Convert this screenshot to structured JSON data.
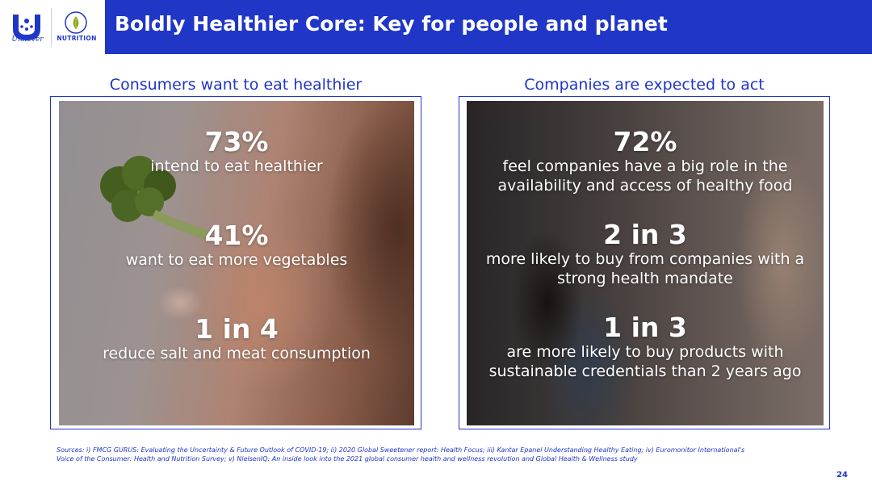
{
  "header": {
    "brand_name": "Unilever",
    "sub_brand": "NUTRITION",
    "title": "Boldly Healthier Core: Key for people and planet"
  },
  "left_panel": {
    "heading": "Consumers want to eat healthier",
    "stats": [
      {
        "value": "73%",
        "description": "intend to eat healthier"
      },
      {
        "value": "41%",
        "description": "want to eat more vegetables"
      },
      {
        "value": "1 in 4",
        "description": "reduce salt and meat consumption"
      }
    ]
  },
  "right_panel": {
    "heading": "Companies are expected to act",
    "stats": [
      {
        "value": "72%",
        "description_line1": "feel companies have a big role in the",
        "description_line2": "availability and access of healthy food"
      },
      {
        "value": "2 in 3",
        "description_line1": "more likely to buy from companies with a",
        "description_line2": "strong health mandate"
      },
      {
        "value": "1 in 3",
        "description_line1": "are more likely to buy products with",
        "description_line2": "sustainable credentials than 2 years ago"
      }
    ]
  },
  "footer": {
    "sources_line1": "Sources: i) FMCG GURUS: Evaluating the Uncertainty & Future Outlook of COVID-19; ii) 2020 Global Sweetener report: Health Focus; iii) Kantar Epanel Understanding Healthy Eating; iv) Euromonitor International's",
    "sources_line2": "Voice of the Consumer: Health and Nutrition Survey; v) NielsenIQ: An inside look into the 2021 global consumer health and wellness revolution and Global Health & Wellness study",
    "page_number": "24"
  },
  "colors": {
    "brand_blue": "#1f36c7",
    "white": "#ffffff"
  },
  "icons": {
    "brand_logo": "unilever-u-logo-icon",
    "sub_brand_logo": "nutrition-leaf-icon"
  }
}
